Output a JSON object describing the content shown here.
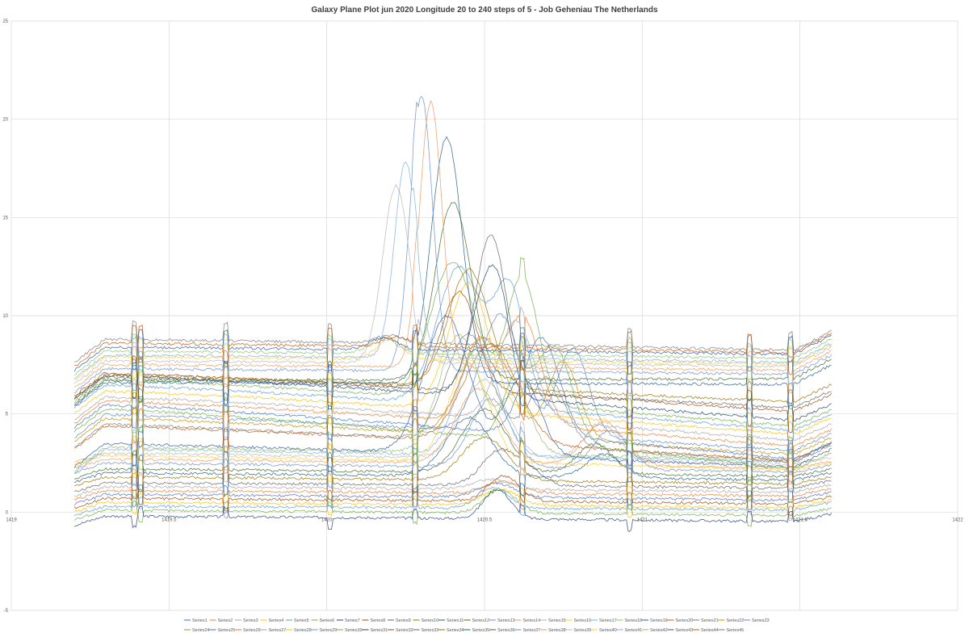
{
  "chart_data": {
    "type": "line",
    "title": "Galaxy Plane Plot jun 2020 Longitude 20 to 240 steps of 5 - Job Geheniau The Netherlands",
    "xlabel": "",
    "ylabel": "",
    "xlim": [
      1419,
      1422
    ],
    "ylim": [
      -5,
      25
    ],
    "x_ticks": [
      "1419",
      "1419.5",
      "1420",
      "1420.5",
      "1421",
      "1421.5",
      "1422"
    ],
    "y_ticks": [
      "-5",
      "0",
      "5",
      "10",
      "15",
      "20",
      "25"
    ],
    "x_tick_values": [
      1419,
      1419.5,
      1420,
      1420.5,
      1421,
      1421.5,
      1422
    ],
    "y_tick_values": [
      -5,
      0,
      5,
      10,
      15,
      20,
      25
    ],
    "grid": true,
    "legend_position": "bottom",
    "x_range_data": [
      1419.2,
      1421.6
    ],
    "series": [
      {
        "name": "Series1",
        "color": "#4472C4",
        "baseline": 0.9,
        "end": 0.6,
        "peaks": [
          [
            1420.54,
            0.7,
            0.08
          ]
        ]
      },
      {
        "name": "Series2",
        "color": "#ED7D31",
        "baseline": 1.1,
        "end": 0.8,
        "peaks": [
          [
            1420.56,
            0.6,
            0.08
          ]
        ]
      },
      {
        "name": "Series3",
        "color": "#A5A5A5",
        "baseline": 1.3,
        "end": 1.0,
        "peaks": [
          [
            1420.52,
            0.5,
            0.08
          ]
        ]
      },
      {
        "name": "Series4",
        "color": "#FFC000",
        "baseline": 0.5,
        "end": 0.2,
        "peaks": [
          [
            1420.55,
            0.8,
            0.08
          ]
        ]
      },
      {
        "name": "Series5",
        "color": "#5B9BD5",
        "baseline": 0.3,
        "end": 0.1,
        "peaks": [
          [
            1420.53,
            1.0,
            0.07
          ]
        ]
      },
      {
        "name": "Series6",
        "color": "#70AD47",
        "baseline": 0.1,
        "end": -0.2,
        "peaks": [
          [
            1420.55,
            1.2,
            0.07
          ]
        ]
      },
      {
        "name": "Series7",
        "color": "#264478",
        "baseline": -0.2,
        "end": -0.5,
        "peaks": [
          [
            1420.54,
            1.5,
            0.06
          ]
        ]
      },
      {
        "name": "Series8",
        "color": "#9E480E",
        "baseline": 0.7,
        "end": 0.4,
        "peaks": [
          [
            1420.56,
            1.3,
            0.07
          ]
        ]
      },
      {
        "name": "Series9",
        "color": "#636363",
        "baseline": 1.5,
        "end": 1.2,
        "peaks": [
          [
            1420.55,
            1.8,
            0.08
          ],
          [
            1420.65,
            0.6,
            0.06
          ]
        ]
      },
      {
        "name": "Series10",
        "color": "#997300",
        "baseline": 1.8,
        "end": 1.4,
        "peaks": [
          [
            1420.5,
            2.2,
            0.1
          ]
        ]
      },
      {
        "name": "Series11",
        "color": "#255E91",
        "baseline": 2.0,
        "end": 1.6,
        "peaks": [
          [
            1420.45,
            3.0,
            0.1
          ],
          [
            1420.88,
            1.2,
            0.08
          ]
        ]
      },
      {
        "name": "Series12",
        "color": "#43682B",
        "baseline": 2.2,
        "end": 1.8,
        "peaks": [
          [
            1420.5,
            3.2,
            0.1
          ],
          [
            1420.85,
            1.5,
            0.08
          ]
        ]
      },
      {
        "name": "Series13",
        "color": "#698ED0",
        "baseline": 2.5,
        "end": 2.0,
        "peaks": [
          [
            1420.52,
            3.5,
            0.09
          ],
          [
            1420.9,
            2.0,
            0.08
          ]
        ]
      },
      {
        "name": "Series14",
        "color": "#F1975A",
        "baseline": 2.7,
        "end": 2.2,
        "peaks": [
          [
            1420.48,
            3.8,
            0.1
          ],
          [
            1420.88,
            2.2,
            0.09
          ]
        ]
      },
      {
        "name": "Series15",
        "color": "#B7B7B7",
        "baseline": 3.0,
        "end": 2.4,
        "peaks": [
          [
            1420.5,
            4.0,
            0.1
          ],
          [
            1420.87,
            1.8,
            0.08
          ]
        ]
      },
      {
        "name": "Series16",
        "color": "#FFCD33",
        "baseline": 2.9,
        "end": 2.1,
        "peaks": [
          [
            1420.45,
            5.0,
            0.09
          ]
        ]
      },
      {
        "name": "Series17",
        "color": "#7CAFDD",
        "baseline": 3.2,
        "end": 2.5,
        "peaks": [
          [
            1420.48,
            5.5,
            0.09
          ]
        ]
      },
      {
        "name": "Series18",
        "color": "#8CC168",
        "baseline": 3.3,
        "end": 2.6,
        "peaks": [
          [
            1420.42,
            6.0,
            0.09
          ],
          [
            1420.6,
            3.0,
            0.07
          ]
        ]
      },
      {
        "name": "Series19",
        "color": "#335AA1",
        "baseline": 3.5,
        "end": 2.2,
        "peaks": [
          [
            1420.38,
            7.0,
            0.1
          ],
          [
            1420.62,
            4.0,
            0.08
          ]
        ]
      },
      {
        "name": "Series20",
        "color": "#C65911",
        "baseline": 4.4,
        "end": 2.5,
        "peaks": [
          [
            1420.52,
            5.0,
            0.12
          ]
        ]
      },
      {
        "name": "Series21",
        "color": "#7B7B7B",
        "baseline": 4.5,
        "end": 2.4,
        "peaks": [
          [
            1420.45,
            5.5,
            0.1
          ],
          [
            1420.7,
            3.5,
            0.08
          ]
        ]
      },
      {
        "name": "Series22",
        "color": "#BF8F00",
        "baseline": 4.8,
        "end": 2.8,
        "peaks": [
          [
            1420.5,
            5.0,
            0.1
          ],
          [
            1420.75,
            4.0,
            0.07
          ]
        ]
      },
      {
        "name": "Series23",
        "color": "#5F89C4",
        "baseline": 5.0,
        "end": 3.0,
        "peaks": [
          [
            1420.55,
            6.0,
            0.09
          ],
          [
            1420.78,
            4.5,
            0.07
          ]
        ]
      },
      {
        "name": "Series24",
        "color": "#70AD47",
        "baseline": 5.3,
        "end": 2.0,
        "peaks": [
          [
            1420.72,
            5.0,
            0.08
          ],
          [
            1420.6,
            3.0,
            0.06
          ]
        ]
      },
      {
        "name": "Series25",
        "color": "#4472C4",
        "baseline": 5.5,
        "end": 2.5,
        "peaks": [
          [
            1420.68,
            5.0,
            0.08
          ]
        ]
      },
      {
        "name": "Series26",
        "color": "#ED7D31",
        "baseline": 5.7,
        "end": 3.2,
        "peaks": [
          [
            1420.62,
            5.5,
            0.08
          ],
          [
            1420.48,
            4.0,
            0.07
          ]
        ]
      },
      {
        "name": "Series27",
        "color": "#A5A5A5",
        "baseline": 5.9,
        "end": 3.5,
        "peaks": [
          [
            1420.6,
            5.0,
            0.08
          ]
        ]
      },
      {
        "name": "Series28",
        "color": "#FFC000",
        "baseline": 6.2,
        "end": 3.8,
        "peaks": [
          [
            1420.45,
            6.5,
            0.09
          ]
        ]
      },
      {
        "name": "Series29",
        "color": "#5B9BD5",
        "baseline": 6.5,
        "end": 4.0,
        "peaks": [
          [
            1420.42,
            7.0,
            0.1
          ],
          [
            1420.58,
            6.0,
            0.07
          ]
        ]
      },
      {
        "name": "Series30",
        "color": "#70AD47",
        "baseline": 6.8,
        "end": 4.2,
        "peaks": [
          [
            1420.4,
            7.0,
            0.1
          ],
          [
            1420.62,
            6.5,
            0.07
          ]
        ]
      },
      {
        "name": "Series31",
        "color": "#264478",
        "baseline": 7.0,
        "end": 4.5,
        "peaks": [
          [
            1420.5,
            5.0,
            0.07
          ],
          [
            1420.55,
            3.0,
            0.05
          ]
        ]
      },
      {
        "name": "Series32",
        "color": "#9E480E",
        "baseline": 7.1,
        "end": 5.0,
        "peaks": [
          [
            1420.42,
            5.0,
            0.08
          ]
        ]
      },
      {
        "name": "Series33",
        "color": "#636363",
        "baseline": 6.9,
        "end": 5.2,
        "peaks": [
          [
            1420.52,
            8.0,
            0.07
          ]
        ]
      },
      {
        "name": "Series34",
        "color": "#997300",
        "baseline": 7.0,
        "end": 5.5,
        "peaks": [
          [
            1420.45,
            6.0,
            0.09
          ]
        ]
      },
      {
        "name": "Series35",
        "color": "#255E91",
        "baseline": 6.6,
        "end": 6.5,
        "peaks": [
          [
            1420.38,
            12.5,
            0.07
          ]
        ]
      },
      {
        "name": "Series36",
        "color": "#43682B",
        "baseline": 6.7,
        "end": 6.8,
        "peaks": [
          [
            1420.4,
            9.0,
            0.08
          ]
        ]
      },
      {
        "name": "Series37",
        "color": "#698ED0",
        "baseline": 7.3,
        "end": 7.0,
        "peaks": [
          [
            1420.3,
            14.0,
            0.05
          ]
        ]
      },
      {
        "name": "Series38",
        "color": "#F1975A",
        "baseline": 7.5,
        "end": 7.2,
        "peaks": [
          [
            1420.33,
            13.5,
            0.05
          ]
        ]
      },
      {
        "name": "Series39",
        "color": "#B7B7B7",
        "baseline": 7.7,
        "end": 7.4,
        "peaks": [
          [
            1420.22,
            9.0,
            0.06
          ]
        ]
      },
      {
        "name": "Series40",
        "color": "#FFCD33",
        "baseline": 7.9,
        "end": 7.5,
        "peaks": [
          [
            1420.2,
            1.0,
            0.06
          ]
        ]
      },
      {
        "name": "Series41",
        "color": "#7CAFDD",
        "baseline": 8.0,
        "end": 7.6,
        "peaks": [
          [
            1420.25,
            10.0,
            0.05
          ]
        ]
      },
      {
        "name": "Series42",
        "color": "#8CC168",
        "baseline": 8.2,
        "end": 7.8,
        "peaks": [
          [
            1420.18,
            0.8,
            0.06
          ]
        ]
      },
      {
        "name": "Series43",
        "color": "#335AA1",
        "baseline": 8.4,
        "end": 8.0,
        "peaks": [
          [
            1420.18,
            0.6,
            0.06
          ]
        ]
      },
      {
        "name": "Series44",
        "color": "#C65911",
        "baseline": 8.6,
        "end": 8.1,
        "peaks": [
          [
            1420.22,
            0.5,
            0.06
          ]
        ]
      },
      {
        "name": "Series45",
        "color": "#7B7B7B",
        "baseline": 8.8,
        "end": 8.2,
        "peaks": [
          [
            1420.2,
            0.4,
            0.06
          ]
        ]
      }
    ]
  }
}
